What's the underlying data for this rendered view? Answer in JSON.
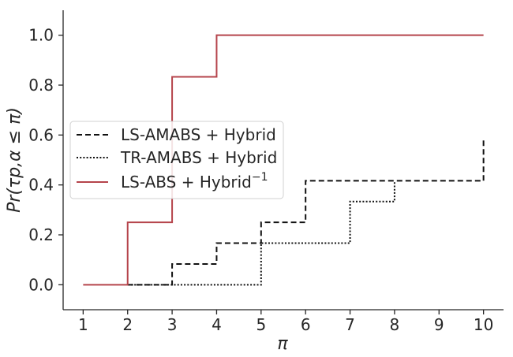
{
  "chart_data": {
    "type": "line",
    "step": true,
    "title": "",
    "xlabel": "π",
    "ylabel": "Pr(τp,α ≤ π)",
    "xlim": [
      0.55,
      10.45
    ],
    "ylim": [
      -0.1,
      1.1
    ],
    "xticks": [
      1,
      2,
      3,
      4,
      5,
      6,
      7,
      8,
      9,
      10
    ],
    "xtick_labels": [
      "1",
      "2",
      "3",
      "4",
      "5",
      "6",
      "7",
      "8",
      "9",
      "10"
    ],
    "yticks": [
      0.0,
      0.2,
      0.4,
      0.6,
      0.8,
      1.0
    ],
    "ytick_labels": [
      "0.0",
      "0.2",
      "0.4",
      "0.6",
      "0.8",
      "1.0"
    ],
    "grid": false,
    "legend_position": "center-left",
    "series": [
      {
        "name": "LS-AMABS + Hybrid",
        "style": "dashed",
        "color": "#111111",
        "x": [
          2,
          3,
          3,
          4,
          4,
          5,
          5,
          6,
          6,
          10,
          10
        ],
        "y": [
          0,
          0,
          0.0833,
          0.0833,
          0.1667,
          0.1667,
          0.25,
          0.25,
          0.4167,
          0.4167,
          0.5833
        ]
      },
      {
        "name": "TR-AMABS + Hybrid",
        "style": "dotted",
        "color": "#111111",
        "x": [
          2,
          5,
          5,
          7,
          7,
          8,
          8
        ],
        "y": [
          0,
          0,
          0.1667,
          0.1667,
          0.3333,
          0.3333,
          0.4167
        ]
      },
      {
        "name": "LS-ABS + Hybrid",
        "name_superscript": "−1",
        "style": "solid",
        "color": "#b5444b",
        "x": [
          1,
          2,
          2,
          3,
          3,
          4,
          4,
          10
        ],
        "y": [
          0,
          0,
          0.25,
          0.25,
          0.8333,
          0.8333,
          1.0,
          1.0
        ]
      }
    ]
  }
}
